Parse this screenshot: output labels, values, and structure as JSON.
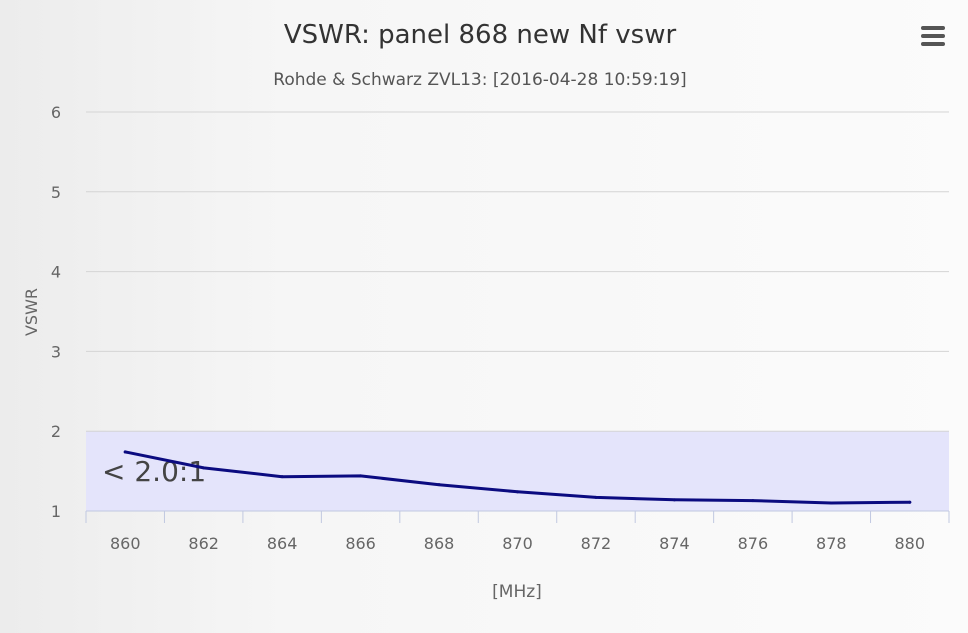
{
  "chart_data": {
    "type": "line",
    "title": "VSWR: panel 868 new Nf vswr",
    "subtitle": "Rohde & Schwarz ZVL13: [2016-04-28 10:59:19]",
    "xlabel": "[MHz]",
    "ylabel": "VSWR",
    "xlim": [
      859,
      881
    ],
    "ylim": [
      1,
      6
    ],
    "x_ticks": [
      860,
      862,
      864,
      866,
      868,
      870,
      872,
      874,
      876,
      878,
      880
    ],
    "y_ticks": [
      1,
      2,
      3,
      4,
      5,
      6
    ],
    "grid": true,
    "plot_band": {
      "from": 1,
      "to": 2,
      "label": "< 2.0:1",
      "color": "#e4e4fb"
    },
    "series": [
      {
        "color": "#0b0b80",
        "x": [
          860,
          862,
          864,
          866,
          868,
          870,
          872,
          874,
          876,
          878,
          880
        ],
        "y": [
          1.74,
          1.54,
          1.43,
          1.44,
          1.33,
          1.24,
          1.17,
          1.14,
          1.13,
          1.1,
          1.11
        ]
      }
    ]
  },
  "menu": {
    "icon": "hamburger-menu-icon"
  }
}
